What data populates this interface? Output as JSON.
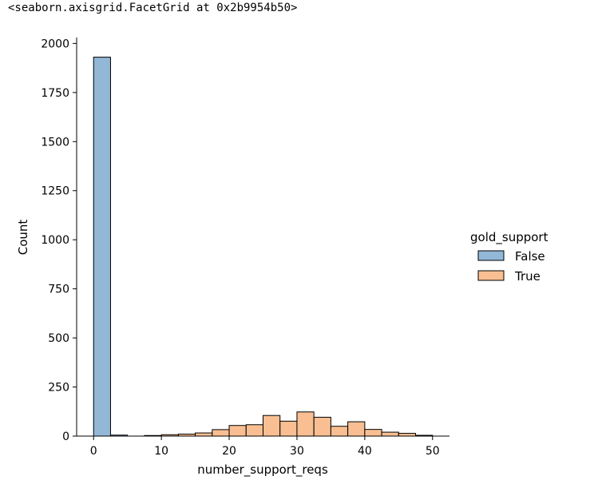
{
  "output_repr": "<seaborn.axisgrid.FacetGrid at 0x2b9954b50>",
  "chart_data": {
    "type": "bar",
    "xlabel": "number_support_reqs",
    "ylabel": "Count",
    "xlim": [
      -2.5,
      52.5
    ],
    "ylim": [
      0,
      2030
    ],
    "xticks": [
      0,
      10,
      20,
      30,
      40,
      50
    ],
    "yticks": [
      0,
      250,
      500,
      750,
      1000,
      1250,
      1500,
      1750,
      2000
    ],
    "bin_width": 2.5,
    "legend": {
      "title": "gold_support",
      "position": "right"
    },
    "series": [
      {
        "name": "False",
        "color": "#92b7d7",
        "bins": [
          [
            0,
            1930
          ],
          [
            2.5,
            5
          ]
        ]
      },
      {
        "name": "True",
        "color": "#f9bf92",
        "bins": [
          [
            7.5,
            3
          ],
          [
            10,
            7
          ],
          [
            12.5,
            10
          ],
          [
            15,
            16
          ],
          [
            17.5,
            33
          ],
          [
            20,
            54
          ],
          [
            22.5,
            58
          ],
          [
            25,
            105
          ],
          [
            27.5,
            76
          ],
          [
            30,
            123
          ],
          [
            32.5,
            96
          ],
          [
            35,
            50
          ],
          [
            37.5,
            73
          ],
          [
            40,
            34
          ],
          [
            42.5,
            20
          ],
          [
            45,
            14
          ],
          [
            47.5,
            4
          ]
        ]
      }
    ]
  }
}
